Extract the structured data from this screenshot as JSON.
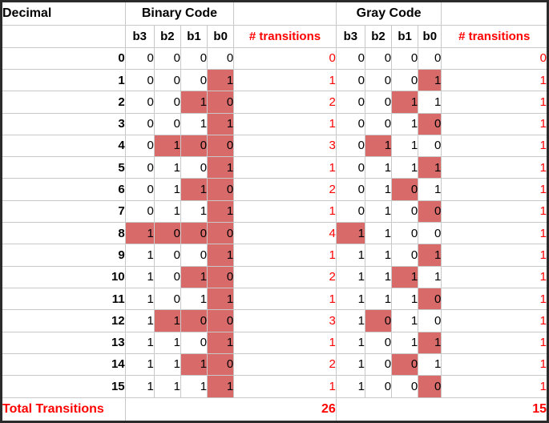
{
  "colors": {
    "highlight": "#d96a6a",
    "red": "#ff0000",
    "grid": "#c9c9c9",
    "border": "#2b2b2b",
    "text": "#000000",
    "background": "#ffffff"
  },
  "table": {
    "header": {
      "decimal_label": "Decimal",
      "binary_group_label": "Binary Code",
      "gray_group_label": "Gray Code",
      "bit_labels": [
        "b3",
        "b2",
        "b1",
        "b0"
      ],
      "transitions_label": "# transitions"
    },
    "rows": [
      {
        "decimal": "0",
        "binary": [
          "0",
          "0",
          "0",
          "0"
        ],
        "binary_changed": [
          0,
          0,
          0,
          0
        ],
        "binary_transitions": "0",
        "gray": [
          "0",
          "0",
          "0",
          "0"
        ],
        "gray_changed": [
          0,
          0,
          0,
          0
        ],
        "gray_transitions": "0"
      },
      {
        "decimal": "1",
        "binary": [
          "0",
          "0",
          "0",
          "1"
        ],
        "binary_changed": [
          0,
          0,
          0,
          1
        ],
        "binary_transitions": "1",
        "gray": [
          "0",
          "0",
          "0",
          "1"
        ],
        "gray_changed": [
          0,
          0,
          0,
          1
        ],
        "gray_transitions": "1"
      },
      {
        "decimal": "2",
        "binary": [
          "0",
          "0",
          "1",
          "0"
        ],
        "binary_changed": [
          0,
          0,
          1,
          1
        ],
        "binary_transitions": "2",
        "gray": [
          "0",
          "0",
          "1",
          "1"
        ],
        "gray_changed": [
          0,
          0,
          1,
          0
        ],
        "gray_transitions": "1"
      },
      {
        "decimal": "3",
        "binary": [
          "0",
          "0",
          "1",
          "1"
        ],
        "binary_changed": [
          0,
          0,
          0,
          1
        ],
        "binary_transitions": "1",
        "gray": [
          "0",
          "0",
          "1",
          "0"
        ],
        "gray_changed": [
          0,
          0,
          0,
          1
        ],
        "gray_transitions": "1"
      },
      {
        "decimal": "4",
        "binary": [
          "0",
          "1",
          "0",
          "0"
        ],
        "binary_changed": [
          0,
          1,
          1,
          1
        ],
        "binary_transitions": "3",
        "gray": [
          "0",
          "1",
          "1",
          "0"
        ],
        "gray_changed": [
          0,
          1,
          0,
          0
        ],
        "gray_transitions": "1"
      },
      {
        "decimal": "5",
        "binary": [
          "0",
          "1",
          "0",
          "1"
        ],
        "binary_changed": [
          0,
          0,
          0,
          1
        ],
        "binary_transitions": "1",
        "gray": [
          "0",
          "1",
          "1",
          "1"
        ],
        "gray_changed": [
          0,
          0,
          0,
          1
        ],
        "gray_transitions": "1"
      },
      {
        "decimal": "6",
        "binary": [
          "0",
          "1",
          "1",
          "0"
        ],
        "binary_changed": [
          0,
          0,
          1,
          1
        ],
        "binary_transitions": "2",
        "gray": [
          "0",
          "1",
          "0",
          "1"
        ],
        "gray_changed": [
          0,
          0,
          1,
          0
        ],
        "gray_transitions": "1"
      },
      {
        "decimal": "7",
        "binary": [
          "0",
          "1",
          "1",
          "1"
        ],
        "binary_changed": [
          0,
          0,
          0,
          1
        ],
        "binary_transitions": "1",
        "gray": [
          "0",
          "1",
          "0",
          "0"
        ],
        "gray_changed": [
          0,
          0,
          0,
          1
        ],
        "gray_transitions": "1"
      },
      {
        "decimal": "8",
        "binary": [
          "1",
          "0",
          "0",
          "0"
        ],
        "binary_changed": [
          1,
          1,
          1,
          1
        ],
        "binary_transitions": "4",
        "gray": [
          "1",
          "1",
          "0",
          "0"
        ],
        "gray_changed": [
          1,
          0,
          0,
          0
        ],
        "gray_transitions": "1"
      },
      {
        "decimal": "9",
        "binary": [
          "1",
          "0",
          "0",
          "1"
        ],
        "binary_changed": [
          0,
          0,
          0,
          1
        ],
        "binary_transitions": "1",
        "gray": [
          "1",
          "1",
          "0",
          "1"
        ],
        "gray_changed": [
          0,
          0,
          0,
          1
        ],
        "gray_transitions": "1"
      },
      {
        "decimal": "10",
        "binary": [
          "1",
          "0",
          "1",
          "0"
        ],
        "binary_changed": [
          0,
          0,
          1,
          1
        ],
        "binary_transitions": "2",
        "gray": [
          "1",
          "1",
          "1",
          "1"
        ],
        "gray_changed": [
          0,
          0,
          1,
          0
        ],
        "gray_transitions": "1"
      },
      {
        "decimal": "11",
        "binary": [
          "1",
          "0",
          "1",
          "1"
        ],
        "binary_changed": [
          0,
          0,
          0,
          1
        ],
        "binary_transitions": "1",
        "gray": [
          "1",
          "1",
          "1",
          "0"
        ],
        "gray_changed": [
          0,
          0,
          0,
          1
        ],
        "gray_transitions": "1"
      },
      {
        "decimal": "12",
        "binary": [
          "1",
          "1",
          "0",
          "0"
        ],
        "binary_changed": [
          0,
          1,
          1,
          1
        ],
        "binary_transitions": "3",
        "gray": [
          "1",
          "0",
          "1",
          "0"
        ],
        "gray_changed": [
          0,
          1,
          0,
          0
        ],
        "gray_transitions": "1"
      },
      {
        "decimal": "13",
        "binary": [
          "1",
          "1",
          "0",
          "1"
        ],
        "binary_changed": [
          0,
          0,
          0,
          1
        ],
        "binary_transitions": "1",
        "gray": [
          "1",
          "0",
          "1",
          "1"
        ],
        "gray_changed": [
          0,
          0,
          0,
          1
        ],
        "gray_transitions": "1"
      },
      {
        "decimal": "14",
        "binary": [
          "1",
          "1",
          "1",
          "0"
        ],
        "binary_changed": [
          0,
          0,
          1,
          1
        ],
        "binary_transitions": "2",
        "gray": [
          "1",
          "0",
          "0",
          "1"
        ],
        "gray_changed": [
          0,
          0,
          1,
          0
        ],
        "gray_transitions": "1"
      },
      {
        "decimal": "15",
        "binary": [
          "1",
          "1",
          "1",
          "1"
        ],
        "binary_changed": [
          0,
          0,
          0,
          1
        ],
        "binary_transitions": "1",
        "gray": [
          "1",
          "0",
          "0",
          "0"
        ],
        "gray_changed": [
          0,
          0,
          0,
          1
        ],
        "gray_transitions": "1"
      }
    ],
    "total": {
      "label": "Total Transitions",
      "binary_total": "26",
      "gray_total": "15"
    }
  }
}
